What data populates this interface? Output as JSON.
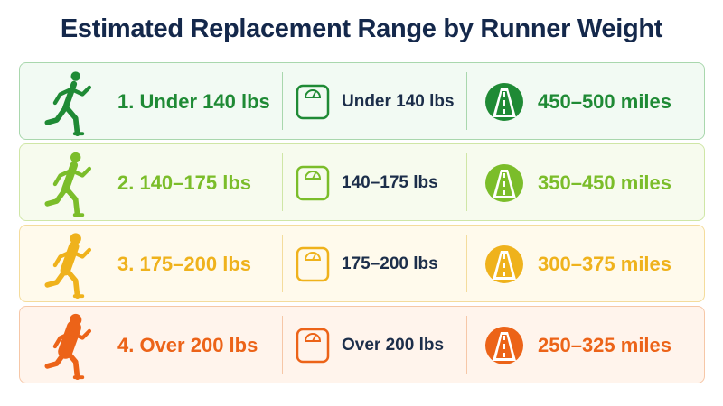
{
  "title": "Estimated Replacement Range by Runner Weight",
  "rows": [
    {
      "category": "1. Under 140 lbs",
      "weight": "Under 140 lbs",
      "miles": "450–500 miles",
      "color": "#1f8a35",
      "bg": "#f2faf3",
      "border": "#a9d7ad",
      "icons": [
        "runner-icon",
        "scale-icon",
        "road-icon"
      ]
    },
    {
      "category": "2. 140–175 lbs",
      "weight": "140–175 lbs",
      "miles": "350–450 miles",
      "color": "#7bbd2a",
      "bg": "#f7fbee",
      "border": "#cfe6a6",
      "icons": [
        "runner-icon",
        "scale-icon",
        "road-icon"
      ]
    },
    {
      "category": "3. 175–200 lbs",
      "weight": "175–200 lbs",
      "miles": "300–375 miles",
      "color": "#efb21c",
      "bg": "#fffaec",
      "border": "#f4dc9c",
      "icons": [
        "runner-icon",
        "scale-icon",
        "road-icon"
      ]
    },
    {
      "category": "4. Over 200 lbs",
      "weight": "Over 200 lbs",
      "miles": "250–325 miles",
      "color": "#ec6318",
      "bg": "#fff4ec",
      "border": "#f6c7a7",
      "icons": [
        "runner-icon",
        "scale-icon",
        "road-icon"
      ]
    }
  ]
}
